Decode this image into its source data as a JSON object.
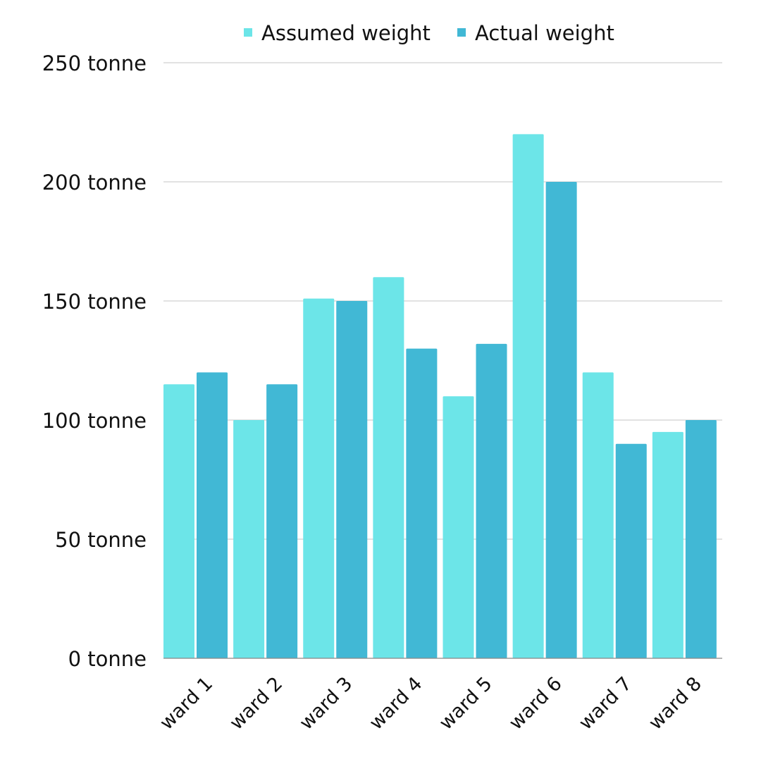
{
  "chart_data": {
    "type": "bar",
    "title": "",
    "xlabel": "",
    "ylabel": "",
    "categories": [
      "ward 1",
      "ward 2",
      "ward 3",
      "ward 4",
      "ward 5",
      "ward 6",
      "ward 7",
      "ward 8"
    ],
    "series": [
      {
        "name": "Assumed weight",
        "color": "#6ce5e8",
        "values": [
          115,
          100,
          151,
          160,
          110,
          220,
          120,
          95
        ]
      },
      {
        "name": "Actual weight",
        "color": "#41b8d5",
        "values": [
          120,
          115,
          150,
          130,
          132,
          200,
          90,
          100
        ]
      }
    ],
    "ylim": [
      0,
      250
    ],
    "yticks": [
      0,
      50,
      100,
      150,
      200,
      250
    ],
    "ytick_labels": [
      "0 tonne",
      "50 tonne",
      "100 tonne",
      "150 tonne",
      "200 tonne",
      "250 tonne"
    ],
    "grid": true,
    "legend_position": "top-center"
  }
}
